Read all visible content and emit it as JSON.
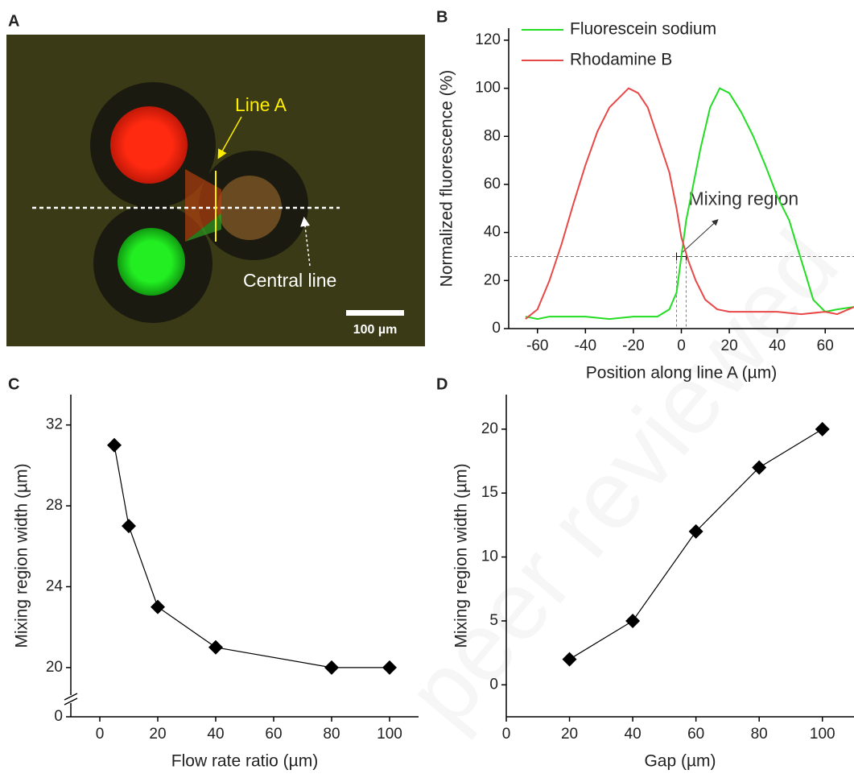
{
  "watermark": "peer reviewed",
  "chart_data": [
    {
      "type": "image",
      "panel_label": "A",
      "annotations": [
        "Line A",
        "Central line"
      ],
      "scale_bar_label": "100 µm"
    },
    {
      "type": "line",
      "panel_label": "B",
      "x_label": "Position along line A (µm)",
      "y_label": "Normalized fluorescence (%)",
      "xlim": [
        -72,
        72
      ],
      "xticks": [
        -60,
        -40,
        -20,
        0,
        20,
        40,
        60
      ],
      "ylim": [
        0,
        125
      ],
      "yticks": [
        0,
        20,
        40,
        60,
        80,
        100,
        120
      ],
      "legend": "top-left",
      "series": [
        {
          "name": "Fluorescein sodium",
          "color": "#22dd22",
          "x": [
            -65,
            -60,
            -55,
            -50,
            -40,
            -30,
            -20,
            -10,
            -5,
            -2,
            0,
            2,
            5,
            8,
            12,
            16,
            20,
            25,
            30,
            35,
            40,
            45,
            48,
            52,
            55,
            60,
            65,
            72
          ],
          "values": [
            5,
            4,
            5,
            5,
            5,
            4,
            5,
            5,
            8,
            15,
            30,
            45,
            60,
            75,
            92,
            100,
            98,
            90,
            80,
            68,
            55,
            45,
            35,
            22,
            12,
            7,
            8,
            9
          ]
        },
        {
          "name": "Rhodamine B",
          "color": "#e84848",
          "x": [
            -65,
            -60,
            -55,
            -50,
            -45,
            -40,
            -35,
            -30,
            -25,
            -22,
            -18,
            -14,
            -10,
            -5,
            -2,
            0,
            3,
            6,
            10,
            15,
            20,
            30,
            40,
            50,
            60,
            65,
            72
          ],
          "values": [
            4,
            8,
            20,
            35,
            52,
            68,
            82,
            92,
            97,
            100,
            98,
            92,
            80,
            65,
            50,
            38,
            28,
            20,
            12,
            8,
            7,
            7,
            7,
            6,
            7,
            6,
            9
          ]
        }
      ],
      "reference_line_y": 30,
      "reference_lines_x": [
        -2,
        2
      ],
      "annotation": "Mixing region"
    },
    {
      "type": "line-marker",
      "panel_label": "C",
      "x_label": "Flow rate ratio (µm)",
      "y_label": "Mixing region width (µm)",
      "xlim": [
        -10,
        110
      ],
      "xticks": [
        0,
        20,
        40,
        60,
        80,
        100
      ],
      "ylim": [
        0,
        33.5
      ],
      "yticks": [
        0,
        20,
        24,
        28,
        32
      ],
      "y_break": [
        1,
        19
      ],
      "x": [
        5,
        10,
        20,
        40,
        80,
        100
      ],
      "values": [
        31,
        27,
        23,
        21,
        20,
        20
      ],
      "color": "#000000"
    },
    {
      "type": "line-marker",
      "panel_label": "D",
      "x_label": "Gap (µm)",
      "y_label": "Mixing region width (µm)",
      "xlim": [
        0,
        110
      ],
      "xticks": [
        0,
        20,
        40,
        60,
        80,
        100
      ],
      "ylim": [
        -2.5,
        22.7
      ],
      "yticks": [
        0,
        5,
        10,
        15,
        20
      ],
      "x": [
        20,
        40,
        60,
        80,
        100
      ],
      "values": [
        2,
        5,
        12,
        17,
        20
      ],
      "color": "#000000"
    }
  ]
}
